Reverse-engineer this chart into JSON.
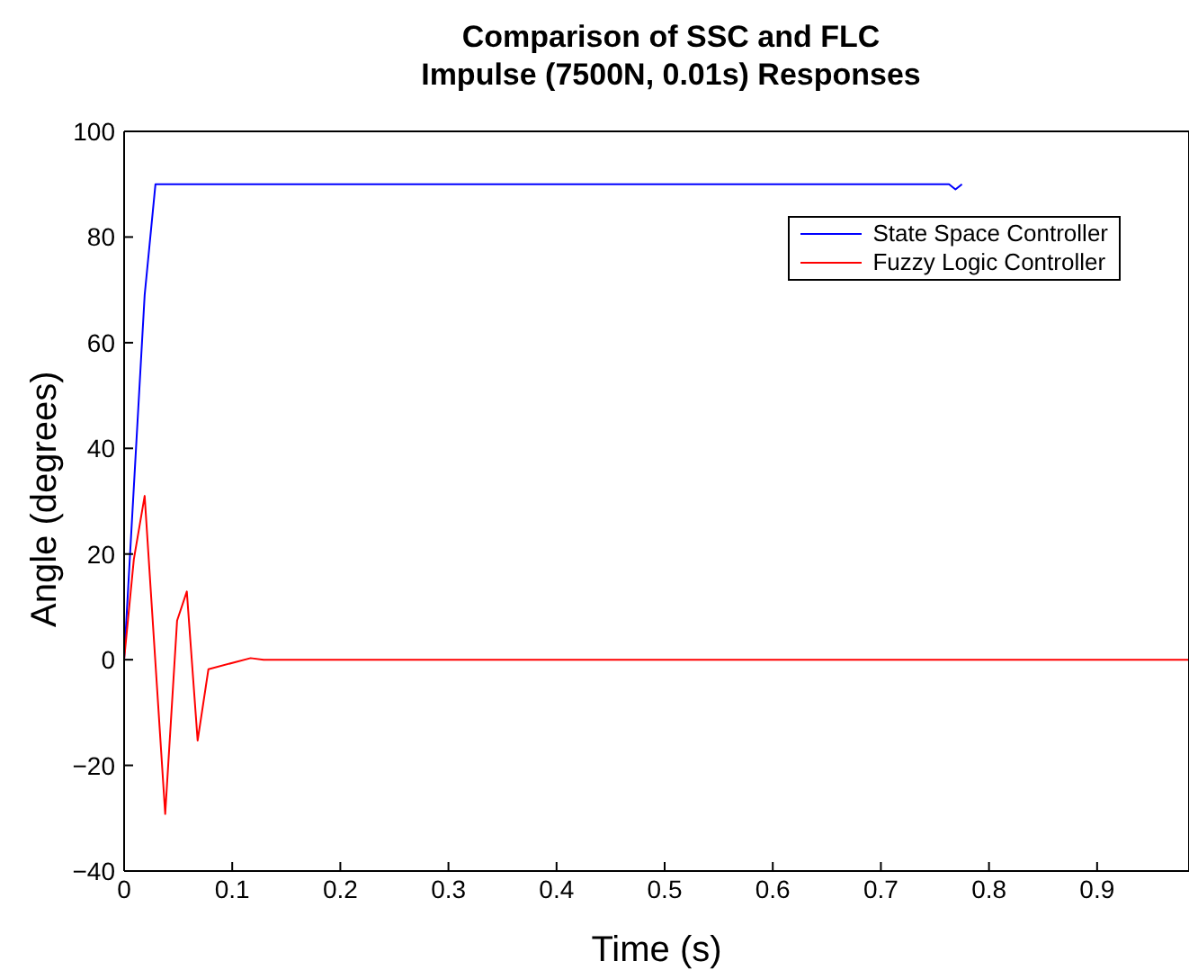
{
  "chart_data": {
    "type": "line",
    "title": "Comparison of SSC and FLC\nImpulse (7500N, 0.01s) Responses",
    "xlabel": "Time (s)",
    "ylabel": "Angle (degrees)",
    "xlim": [
      0,
      0.985
    ],
    "xticks": [
      0,
      0.1,
      0.2,
      0.3,
      0.4,
      0.5,
      0.6,
      0.7,
      0.8,
      0.9
    ],
    "ylim": [
      -40,
      100
    ],
    "yticks": [
      -40,
      -20,
      0,
      20,
      40,
      60,
      80,
      100
    ],
    "grid": false,
    "legend": "top right",
    "marker": "none",
    "line_style": "solid",
    "series": [
      {
        "name": "State Space Controller",
        "color": "#0000ff",
        "x": [
          0,
          0.019,
          0.029,
          0.763,
          0.769,
          0.775
        ],
        "values": [
          0,
          69,
          90,
          90,
          89,
          90
        ]
      },
      {
        "name": "Fuzzy Logic Controller",
        "color": "#ff0000",
        "x": [
          0,
          0.009,
          0.019,
          0.038,
          0.049,
          0.058,
          0.068,
          0.078,
          0.117,
          0.129,
          0.985
        ],
        "values": [
          0,
          19,
          31,
          -29.2,
          7.4,
          12.9,
          -15.3,
          -1.8,
          0.3,
          0,
          0
        ]
      }
    ]
  }
}
